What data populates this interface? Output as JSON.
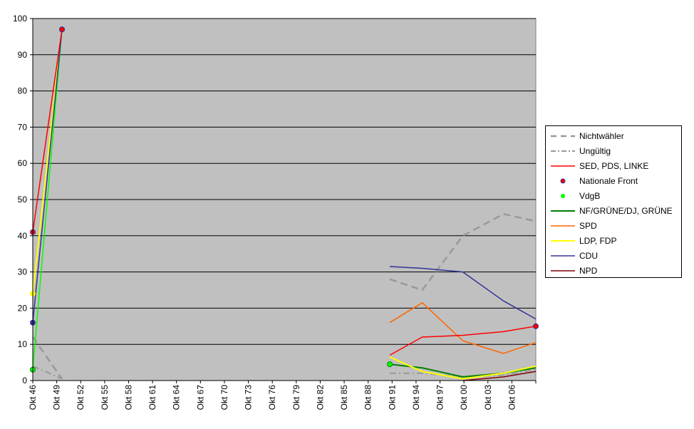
{
  "chart_data": {
    "type": "line",
    "title": "",
    "xlabel": "",
    "ylabel": "",
    "ylim": [
      0,
      100
    ],
    "yticks": [
      0,
      10,
      20,
      30,
      40,
      50,
      60,
      70,
      80,
      90,
      100
    ],
    "x_tick_labels": [
      "Okt 46",
      "Okt 49",
      "Okt 52",
      "Okt 55",
      "Okt 58",
      "Okt 61",
      "Okt 64",
      "Okt 67",
      "Okt 70",
      "Okt 73",
      "Okt 76",
      "Okt 79",
      "Okt 82",
      "Okt 85",
      "Okt 88",
      "Okt 91",
      "Okt 94",
      "Okt 97",
      "Okt 00",
      "Okt 03",
      "Okt 06"
    ],
    "x_domain": [
      1946.8,
      2008.8
    ],
    "grid": "horizontal",
    "legend_position": "right",
    "plot_background": "#C0C0C0",
    "series": [
      {
        "name": "Nichtwähler",
        "color": "#999999",
        "style": "dashed",
        "width": 2.5,
        "marker": false,
        "segments": [
          [
            {
              "x": 1946.8,
              "y": 12.0
            },
            {
              "x": 1950.4,
              "y": 0.5
            }
          ],
          [
            {
              "x": 1990.8,
              "y": 28.0
            },
            {
              "x": 1994.8,
              "y": 25.0
            },
            {
              "x": 1999.8,
              "y": 40.0
            },
            {
              "x": 2004.8,
              "y": 46.0
            },
            {
              "x": 2008.8,
              "y": 44.0
            }
          ]
        ]
      },
      {
        "name": "Ungültig",
        "color": "#999999",
        "style": "dashdot",
        "width": 2,
        "marker": false,
        "segments": [
          [
            {
              "x": 1946.8,
              "y": 4.0
            },
            {
              "x": 1950.4,
              "y": 0.5
            }
          ],
          [
            {
              "x": 1990.8,
              "y": 2.0
            },
            {
              "x": 1994.8,
              "y": 2.0
            },
            {
              "x": 1999.8,
              "y": 1.0
            },
            {
              "x": 2004.8,
              "y": 1.5
            },
            {
              "x": 2008.8,
              "y": 3.0
            }
          ]
        ]
      },
      {
        "name": "SED, PDS, LINKE",
        "color": "#FF0000",
        "style": "solid",
        "width": 1.5,
        "marker": false,
        "segments": [
          [
            {
              "x": 1946.8,
              "y": 41.0
            },
            {
              "x": 1950.4,
              "y": 97.0
            }
          ],
          [
            {
              "x": 1990.8,
              "y": 7.0
            },
            {
              "x": 1994.8,
              "y": 12.0
            },
            {
              "x": 1999.8,
              "y": 12.5
            },
            {
              "x": 2004.8,
              "y": 13.5
            },
            {
              "x": 2008.8,
              "y": 15.0
            }
          ]
        ]
      },
      {
        "name": "Nationale Front",
        "color": "#FF0000",
        "style": "none",
        "width": 0,
        "marker": true,
        "points": [
          {
            "x": 1946.8,
            "y": 41.0
          },
          {
            "x": 1950.4,
            "y": 97.0
          },
          {
            "x": 2008.8,
            "y": 15.0
          }
        ]
      },
      {
        "name": "VdgB",
        "color": "#00FF00",
        "style": "solid",
        "width": 1.5,
        "marker": true,
        "segments": [
          [
            {
              "x": 1946.8,
              "y": 3.0
            },
            {
              "x": 1950.4,
              "y": 97.0
            }
          ]
        ],
        "points": [
          {
            "x": 1946.8,
            "y": 3.0
          },
          {
            "x": 1990.8,
            "y": 4.5
          }
        ]
      },
      {
        "name": "NF/GRÜNE/DJ, GRÜNE",
        "color": "#008000",
        "style": "solid",
        "width": 2,
        "marker": false,
        "segments": [
          [
            {
              "x": 1990.8,
              "y": 4.5
            },
            {
              "x": 1994.8,
              "y": 3.5
            },
            {
              "x": 1999.8,
              "y": 1.0
            },
            {
              "x": 2004.8,
              "y": 2.0
            },
            {
              "x": 2008.8,
              "y": 3.5
            }
          ]
        ]
      },
      {
        "name": "SPD",
        "color": "#FF6600",
        "style": "solid",
        "width": 1.5,
        "marker": false,
        "segments": [
          [
            {
              "x": 1990.8,
              "y": 16.0
            },
            {
              "x": 1994.8,
              "y": 21.5
            },
            {
              "x": 1999.8,
              "y": 11.0
            },
            {
              "x": 2004.8,
              "y": 7.5
            },
            {
              "x": 2008.8,
              "y": 10.5
            }
          ]
        ]
      },
      {
        "name": "LDP, FDP",
        "color": "#FFFF00",
        "style": "solid",
        "width": 2,
        "marker": true,
        "segments": [
          [
            {
              "x": 1946.8,
              "y": 24.0
            },
            {
              "x": 1950.4,
              "y": 97.0
            }
          ],
          [
            {
              "x": 1990.8,
              "y": 6.5
            },
            {
              "x": 1994.8,
              "y": 2.5
            },
            {
              "x": 1999.8,
              "y": 0.5
            },
            {
              "x": 2004.8,
              "y": 2.0
            },
            {
              "x": 2008.8,
              "y": 4.0
            }
          ]
        ],
        "points": [
          {
            "x": 1946.8,
            "y": 24.0
          }
        ]
      },
      {
        "name": "CDU",
        "color": "#333399",
        "style": "solid",
        "width": 1.5,
        "marker": true,
        "segments": [
          [
            {
              "x": 1946.8,
              "y": 16.0
            },
            {
              "x": 1950.4,
              "y": 97.0
            }
          ],
          [
            {
              "x": 1990.8,
              "y": 31.5
            },
            {
              "x": 1994.8,
              "y": 31.0
            },
            {
              "x": 1999.8,
              "y": 30.0
            },
            {
              "x": 2004.8,
              "y": 22.0
            },
            {
              "x": 2008.8,
              "y": 17.0
            }
          ]
        ],
        "points": [
          {
            "x": 1946.8,
            "y": 16.0
          },
          {
            "x": 1950.4,
            "y": 97.0
          }
        ]
      },
      {
        "name": "NPD",
        "color": "#800000",
        "style": "solid",
        "width": 1.5,
        "marker": false,
        "segments": [
          [
            {
              "x": 1999.8,
              "y": 0.0
            },
            {
              "x": 2004.8,
              "y": 1.0
            },
            {
              "x": 2008.8,
              "y": 2.5
            }
          ]
        ]
      }
    ]
  }
}
